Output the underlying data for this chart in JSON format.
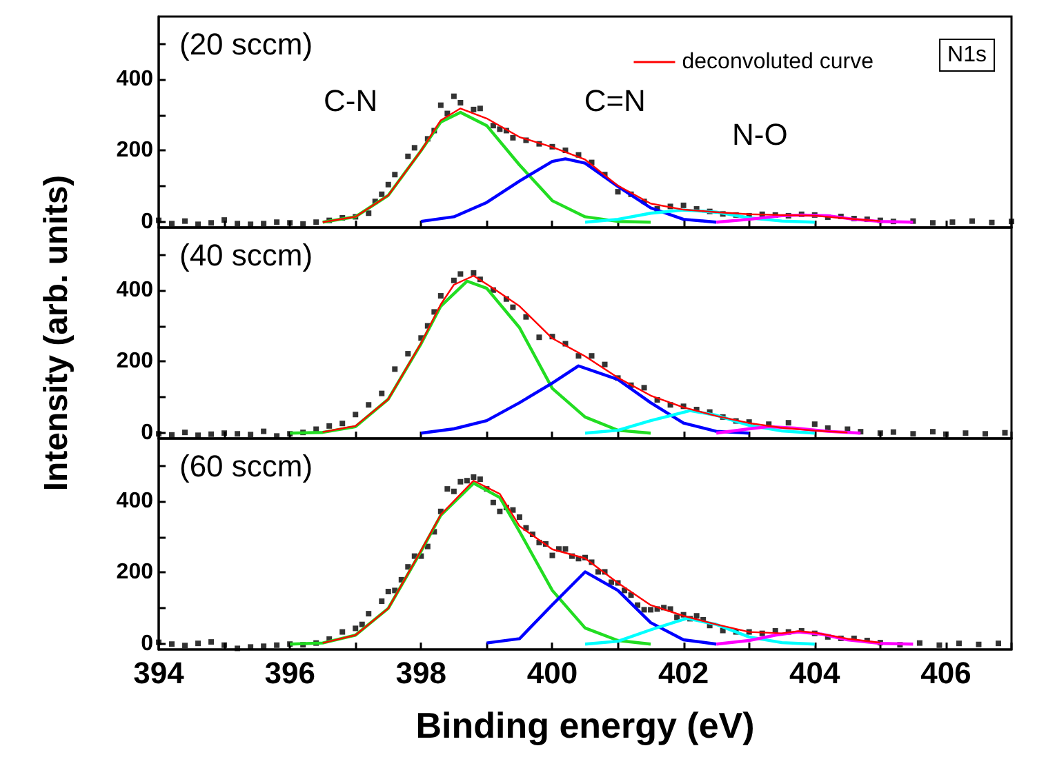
{
  "chart_data": [
    {
      "type": "line",
      "title": "(20 sccm)",
      "xlim": [
        394,
        407
      ],
      "ylim": [
        -15,
        575
      ],
      "xticks": [
        394,
        {
          "value": 395,
          "label": null
        },
        396,
        {
          "value": 397,
          "label": null
        },
        398,
        {
          "value": 399,
          "label": null
        },
        400,
        {
          "value": 401,
          "label": null
        },
        402,
        {
          "value": 403,
          "label": null
        },
        404,
        {
          "value": 405,
          "label": null
        },
        406,
        {
          "value": 407,
          "label": null
        }
      ],
      "yticks": [
        0,
        {
          "value": 100,
          "label": null
        },
        200,
        {
          "value": 300,
          "label": null
        },
        400,
        {
          "value": 500,
          "label": null
        }
      ],
      "tick_labels": "y",
      "legend": "top right",
      "annotations": [
        "N1s",
        "C-N",
        "C=N",
        "N-O"
      ],
      "series": [
        {
          "type": "scatter",
          "marker": "square",
          "color": "#000000",
          "x": [
            394,
            394.2,
            394.4,
            394.6,
            394.8,
            395,
            395.2,
            395.4,
            395.6,
            395.8,
            396,
            396.2,
            396.4,
            396.6,
            396.8,
            397,
            397.2,
            397.3,
            397.4,
            397.5,
            397.6,
            397.8,
            397.9,
            398.1,
            398.2,
            398.3,
            398.4,
            398.5,
            398.6,
            398.8,
            398.9,
            399.1,
            399.2,
            399.3,
            399.4,
            399.6,
            399.8,
            400,
            400.2,
            400.4,
            400.6,
            400.8,
            401,
            401.2,
            401.4,
            401.6,
            401.8,
            402,
            402.2,
            402.4,
            402.6,
            402.8,
            403,
            403.2,
            403.4,
            403.6,
            403.8,
            404,
            404.2,
            404.4,
            404.6,
            404.8,
            405,
            405.2,
            405.5,
            405.8,
            406.1,
            406.4,
            406.7,
            407
          ],
          "values": [
            5,
            -4,
            3,
            -6,
            -2,
            6,
            -4,
            -6,
            -4,
            0,
            -2,
            -5,
            0,
            5,
            12,
            15,
            25,
            58,
            78,
            105,
            133,
            184,
            208,
            233,
            256,
            327,
            304,
            352,
            334,
            315,
            318,
            270,
            260,
            256,
            236,
            229,
            219,
            211,
            201,
            188,
            167,
            133,
            85,
            78,
            58,
            37,
            44,
            47,
            37,
            30,
            23,
            20,
            18,
            22,
            20,
            18,
            22,
            20,
            14,
            16,
            10,
            8,
            5,
            2,
            3,
            -2,
            0,
            3,
            -1,
            2
          ]
        },
        {
          "marker": "none",
          "color": "#22dd22",
          "x": [
            396.5,
            397,
            397.5,
            398,
            398.3,
            398.6,
            399,
            399.5,
            400,
            400.5,
            401,
            401.5
          ],
          "values": [
            0,
            15,
            75,
            200,
            280,
            307,
            270,
            160,
            60,
            15,
            2,
            0
          ]
        },
        {
          "marker": "none",
          "color": "#0000ff",
          "x": [
            398,
            398.5,
            399,
            399.5,
            400,
            400.2,
            400.5,
            401,
            401.5,
            402,
            402.5
          ],
          "values": [
            2,
            15,
            55,
            115,
            170,
            177,
            165,
            100,
            40,
            8,
            0
          ]
        },
        {
          "marker": "none",
          "color": "#00ffff",
          "x": [
            400.5,
            401,
            401.5,
            402,
            402.5,
            403,
            403.5,
            404
          ],
          "values": [
            0,
            8,
            25,
            34,
            28,
            12,
            3,
            0
          ]
        },
        {
          "marker": "none",
          "color": "#ff00ff",
          "x": [
            402.5,
            403,
            403.5,
            403.8,
            404.2,
            404.6,
            405,
            405.5
          ],
          "values": [
            0,
            8,
            18,
            20,
            18,
            8,
            2,
            0
          ]
        },
        {
          "marker": "none",
          "name": "deconvoluted curve",
          "color": "#ff0000",
          "x": [
            396.5,
            397,
            397.5,
            398,
            398.3,
            398.6,
            399,
            399.5,
            400,
            400.5,
            401,
            401.5,
            402,
            402.5,
            403,
            403.5,
            404,
            404.5,
            405
          ],
          "values": [
            0,
            15,
            75,
            200,
            285,
            318,
            290,
            238,
            210,
            175,
            102,
            52,
            35,
            28,
            22,
            20,
            18,
            10,
            3
          ]
        }
      ]
    },
    {
      "type": "line",
      "title": "(40 sccm)",
      "ylabel": "Intensity (arb. units)",
      "xlim": [
        394,
        407
      ],
      "ylim": [
        -15,
        575
      ],
      "xticks": [
        394,
        {
          "value": 395,
          "label": null
        },
        396,
        {
          "value": 397,
          "label": null
        },
        398,
        {
          "value": 399,
          "label": null
        },
        400,
        {
          "value": 401,
          "label": null
        },
        402,
        {
          "value": 403,
          "label": null
        },
        404,
        {
          "value": 405,
          "label": null
        },
        406,
        {
          "value": 407,
          "label": null
        }
      ],
      "yticks": [
        0,
        {
          "value": 100,
          "label": null
        },
        200,
        {
          "value": 300,
          "label": null
        },
        400,
        {
          "value": 500,
          "label": null
        }
      ],
      "tick_labels": "y",
      "series": [
        {
          "type": "scatter",
          "marker": "square",
          "color": "#000000",
          "x": [
            394,
            394.2,
            394.4,
            394.6,
            394.8,
            395,
            395.2,
            395.4,
            395.6,
            395.8,
            396,
            396.2,
            396.4,
            396.6,
            396.8,
            397,
            397.2,
            397.4,
            397.6,
            397.8,
            398,
            398.1,
            398.2,
            398.3,
            398.5,
            398.6,
            398.8,
            398.9,
            399.1,
            399.3,
            399.4,
            399.6,
            399.8,
            400,
            400.2,
            400.4,
            400.6,
            400.8,
            401,
            401.2,
            401.4,
            401.6,
            401.8,
            402,
            402.2,
            402.4,
            402.6,
            402.8,
            403,
            403.3,
            403.6,
            404,
            404.2,
            404.5,
            404.7,
            405,
            405.2,
            405.5,
            405.8,
            406,
            406.3,
            406.6,
            406.9
          ],
          "values": [
            -2,
            -5,
            2,
            -6,
            -3,
            0,
            -2,
            -4,
            5,
            -8,
            -2,
            2,
            11,
            20,
            27,
            52,
            79,
            111,
            179,
            222,
            266,
            300,
            339,
            384,
            427,
            445,
            448,
            430,
            400,
            375,
            352,
            325,
            268,
            270,
            250,
            216,
            216,
            192,
            154,
            134,
            127,
            93,
            79,
            75,
            66,
            59,
            45,
            34,
            31,
            25,
            29,
            25,
            14,
            11,
            4,
            0,
            3,
            -2,
            4,
            -3,
            0,
            -2,
            1
          ]
        },
        {
          "marker": "none",
          "color": "#22dd22",
          "x": [
            396,
            396.5,
            397,
            397.5,
            398,
            398.3,
            398.7,
            399,
            399.5,
            400,
            400.5,
            401,
            401.5
          ],
          "values": [
            0,
            2,
            18,
            95,
            250,
            355,
            425,
            405,
            295,
            125,
            45,
            8,
            0
          ]
        },
        {
          "marker": "none",
          "color": "#0000ff",
          "x": [
            398,
            398.5,
            399,
            399.5,
            400,
            400.4,
            401,
            401.5,
            402,
            402.5,
            403
          ],
          "values": [
            0,
            12,
            35,
            85,
            140,
            188,
            150,
            85,
            28,
            5,
            0
          ]
        },
        {
          "marker": "none",
          "color": "#00ffff",
          "x": [
            400.5,
            401,
            401.5,
            402.1,
            402.5,
            403,
            403.5,
            404
          ],
          "values": [
            0,
            8,
            35,
            63,
            50,
            22,
            6,
            0
          ]
        },
        {
          "marker": "none",
          "color": "#ff00ff",
          "x": [
            402.5,
            403,
            403.3,
            403.7,
            404.2,
            404.7
          ],
          "values": [
            0,
            12,
            18,
            14,
            5,
            0
          ]
        },
        {
          "marker": "none",
          "color": "#ff0000",
          "x": [
            396.5,
            397,
            397.5,
            398,
            398.3,
            398.5,
            398.8,
            399.1,
            399.5,
            400,
            400.5,
            401,
            401.5,
            402,
            402.5,
            403,
            403.5,
            404,
            404.5
          ],
          "values": [
            3,
            20,
            95,
            252,
            360,
            415,
            440,
            405,
            355,
            265,
            215,
            155,
            105,
            72,
            48,
            28,
            15,
            7,
            2
          ]
        }
      ]
    },
    {
      "type": "line",
      "title": "(60 sccm)",
      "xlabel": "Binding energy (eV)",
      "xlim": [
        394,
        407
      ],
      "ylim": [
        -15,
        575
      ],
      "xticks": [
        394,
        {
          "value": 395,
          "label": null
        },
        396,
        {
          "value": 397,
          "label": null
        },
        398,
        {
          "value": 399,
          "label": null
        },
        400,
        {
          "value": 401,
          "label": null
        },
        402,
        {
          "value": 403,
          "label": null
        },
        404,
        {
          "value": 405,
          "label": null
        },
        406,
        {
          "value": 407,
          "label": null
        }
      ],
      "yticks": [
        0,
        {
          "value": 100,
          "label": null
        },
        200,
        {
          "value": 300,
          "label": null
        },
        400,
        {
          "value": 500,
          "label": null
        }
      ],
      "series": [
        {
          "type": "scatter",
          "marker": "square",
          "color": "#000000",
          "x": [
            394,
            394.2,
            394.4,
            394.6,
            394.8,
            395,
            395.2,
            395.4,
            395.6,
            395.8,
            396,
            396.2,
            396.4,
            396.6,
            396.8,
            397,
            397.1,
            397.2,
            397.4,
            397.5,
            397.6,
            397.7,
            397.8,
            397.9,
            398,
            398.1,
            398.2,
            398.3,
            398.4,
            398.5,
            398.6,
            398.7,
            398.8,
            398.9,
            399,
            399.1,
            399.2,
            399.3,
            399.4,
            399.5,
            399.6,
            399.7,
            399.8,
            399.9,
            400,
            400.1,
            400.2,
            400.3,
            400.4,
            400.5,
            400.6,
            400.7,
            400.8,
            400.9,
            401,
            401.1,
            401.2,
            401.3,
            401.4,
            401.5,
            401.6,
            401.7,
            401.8,
            401.9,
            402,
            402.1,
            402.2,
            402.3,
            402.4,
            402.6,
            402.8,
            403,
            403.2,
            403.4,
            403.6,
            403.8,
            404,
            404.2,
            404.4,
            404.6,
            404.8,
            405,
            405.3,
            405.6,
            405.9,
            406.2,
            406.5,
            406.8
          ],
          "values": [
            5,
            0,
            -4,
            2,
            6,
            -3,
            -12,
            -8,
            -6,
            -3,
            0,
            -2,
            3,
            14,
            34,
            44,
            55,
            85,
            120,
            147,
            150,
            180,
            216,
            246,
            246,
            273,
            314,
            371,
            434,
            427,
            454,
            457,
            467,
            461,
            434,
            396,
            371,
            382,
            375,
            355,
            325,
            307,
            284,
            280,
            248,
            266,
            266,
            246,
            239,
            242,
            229,
            202,
            202,
            173,
            171,
            150,
            137,
            109,
            96,
            96,
            98,
            102,
            98,
            75,
            82,
            71,
            79,
            68,
            52,
            38,
            34,
            34,
            30,
            37,
            34,
            37,
            30,
            20,
            16,
            16,
            10,
            4,
            -2,
            3,
            -3,
            2,
            -1,
            2
          ]
        },
        {
          "marker": "none",
          "color": "#22dd22",
          "x": [
            396,
            396.5,
            397,
            397.5,
            398,
            398.3,
            398.8,
            399.2,
            399.5,
            400,
            400.5,
            401,
            401.5
          ],
          "values": [
            0,
            3,
            25,
            100,
            260,
            360,
            450,
            410,
            315,
            150,
            45,
            10,
            0
          ]
        },
        {
          "marker": "none",
          "color": "#0000ff",
          "x": [
            399,
            399.5,
            400,
            400.5,
            401,
            401.5,
            402,
            402.5
          ],
          "values": [
            3,
            15,
            110,
            202,
            150,
            60,
            12,
            0
          ]
        },
        {
          "marker": "none",
          "color": "#00ffff",
          "x": [
            400.5,
            401,
            401.5,
            402.05,
            402.5,
            403,
            403.5,
            404
          ],
          "values": [
            0,
            8,
            40,
            72,
            55,
            20,
            4,
            0
          ]
        },
        {
          "marker": "none",
          "color": "#ff00ff",
          "x": [
            402.5,
            403,
            403.4,
            403.75,
            404.1,
            404.5,
            405,
            405.5
          ],
          "values": [
            0,
            10,
            25,
            34,
            28,
            12,
            2,
            0
          ]
        },
        {
          "marker": "none",
          "color": "#ff0000",
          "x": [
            396.5,
            397,
            397.5,
            398,
            398.3,
            398.8,
            399.2,
            399.5,
            400,
            400.5,
            401,
            401.5,
            402,
            402.5,
            403,
            403.5,
            403.75,
            404,
            404.5,
            405
          ],
          "values": [
            3,
            25,
            100,
            262,
            362,
            457,
            420,
            330,
            265,
            240,
            171,
            109,
            79,
            55,
            34,
            30,
            36,
            32,
            15,
            4
          ]
        }
      ]
    }
  ]
}
